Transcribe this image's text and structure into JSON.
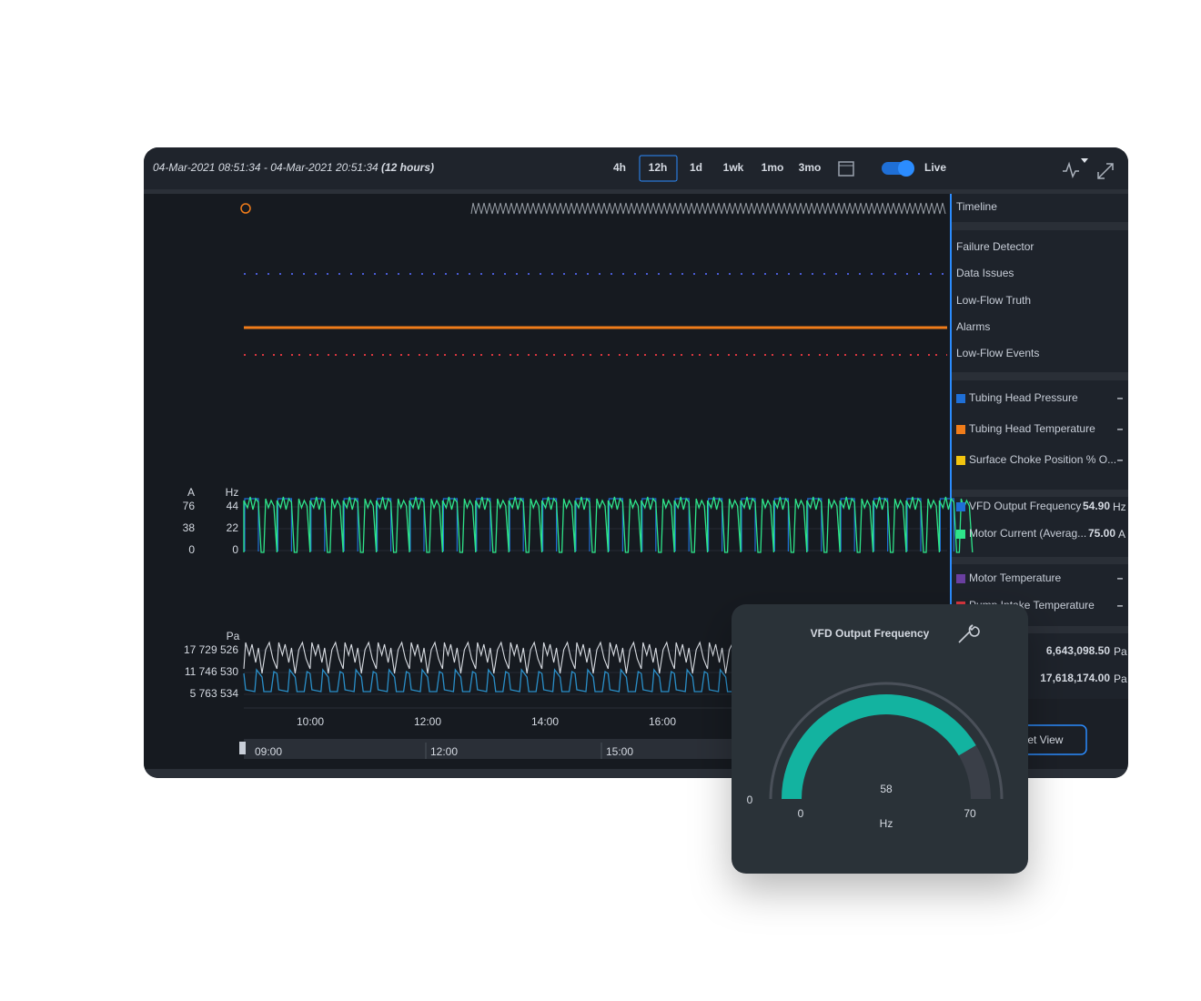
{
  "header": {
    "date_range": "04-Mar-2021 08:51:34 - 04-Mar-2021 20:51:34",
    "duration": "(12 hours)",
    "ranges": [
      "4h",
      "12h",
      "1d",
      "1wk",
      "1mo",
      "3mo"
    ],
    "live": "Live"
  },
  "sidebar": {
    "timeline": "Timeline",
    "events": [
      "Failure Detector",
      "Data Issues",
      "Low-Flow Truth",
      "Alarms",
      "Low-Flow Events"
    ],
    "signals": [
      {
        "name": "Tubing Head Pressure",
        "color": "#1f6fd6",
        "value": "–"
      },
      {
        "name": "Tubing Head Temperature",
        "color": "#f07c1a",
        "value": "–"
      },
      {
        "name": "Surface Choke Position % O...",
        "color": "#f2c40f",
        "value": "–"
      },
      {
        "name": "VFD Output Frequency",
        "color": "#1f6fd6",
        "value": "54.90",
        "unit": "Hz"
      },
      {
        "name": "Motor Current (Averag...",
        "color": "#2ee58a",
        "value": "75.00",
        "unit": "A"
      },
      {
        "name": "Motor Temperature",
        "color": "#6a3fa0",
        "value": "–"
      },
      {
        "name": "Pump Intake Temperature",
        "color": "#d9363e",
        "value": "–"
      }
    ],
    "pressures": [
      {
        "value": "6,643,098.50",
        "unit": "Pa"
      },
      {
        "value": "17,618,174.00",
        "unit": "Pa"
      }
    ],
    "reset": "Reset View"
  },
  "charts": {
    "current_unit": "A",
    "current_ticks": [
      76,
      38,
      0
    ],
    "freq_unit": "Hz",
    "freq_ticks": [
      44,
      22,
      0
    ],
    "pressure_unit": "Pa",
    "pressure_ticks": [
      "17 729 526",
      "11 746 530",
      "5 763 534"
    ],
    "time_ticks": [
      "10:00",
      "12:00",
      "14:00",
      "16:00"
    ],
    "navigator_ticks": [
      "09:00",
      "12:00",
      "15:00"
    ]
  },
  "gauge": {
    "title": "VFD Output Frequency",
    "value": 58,
    "unit": "Hz",
    "min": 0,
    "max": 70,
    "scale_zero": 0,
    "color": "#13b3a0"
  }
}
